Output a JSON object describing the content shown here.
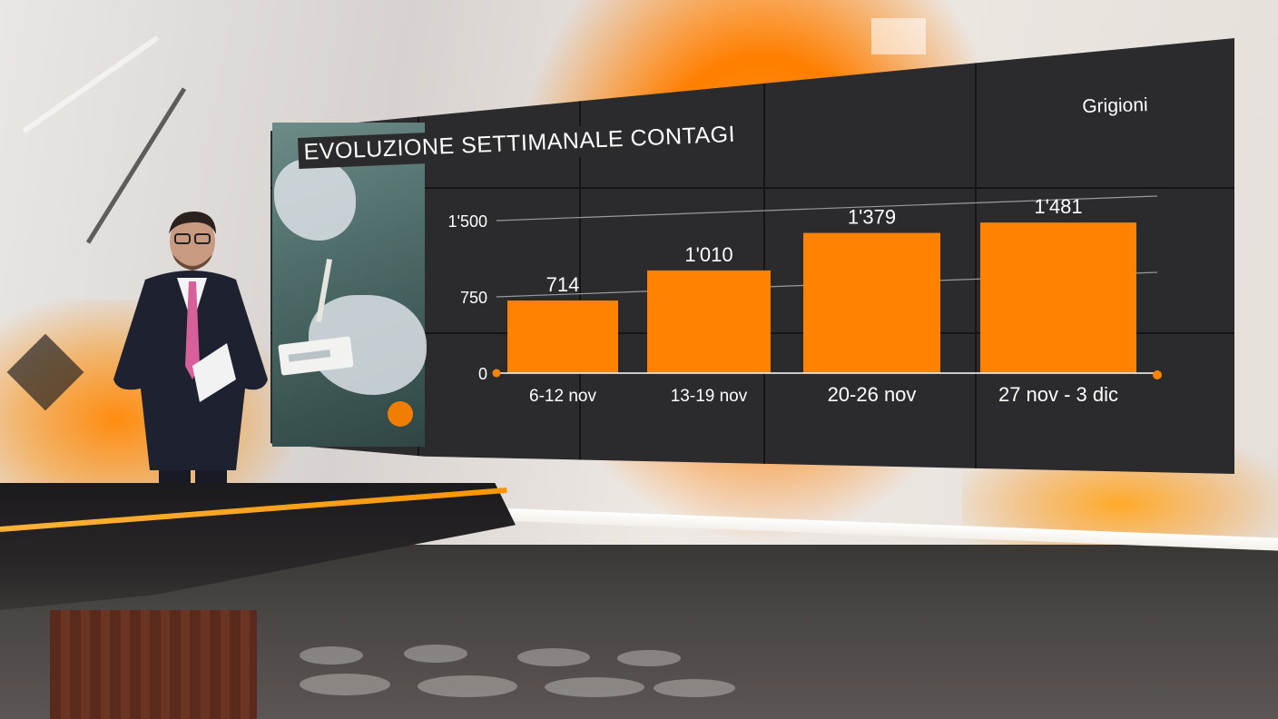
{
  "region": "Grigioni",
  "accent_color": "#ff8200",
  "chart_data": {
    "type": "bar",
    "title": "EVOLUZIONE SETTIMANALE CONTAGI",
    "categories": [
      "6-12 nov",
      "13-19 nov",
      "20-26 nov",
      "27 nov - 3 dic"
    ],
    "values": [
      714,
      1010,
      1379,
      1481
    ],
    "value_labels": [
      "714",
      "1'010",
      "1'379",
      "1'481"
    ],
    "yticks": [
      0,
      750,
      1500
    ],
    "ytick_labels": [
      "0",
      "750",
      "1'500"
    ],
    "ylim": [
      0,
      1500
    ],
    "grid": true,
    "bar_color": "#ff8200",
    "legend": "none"
  }
}
